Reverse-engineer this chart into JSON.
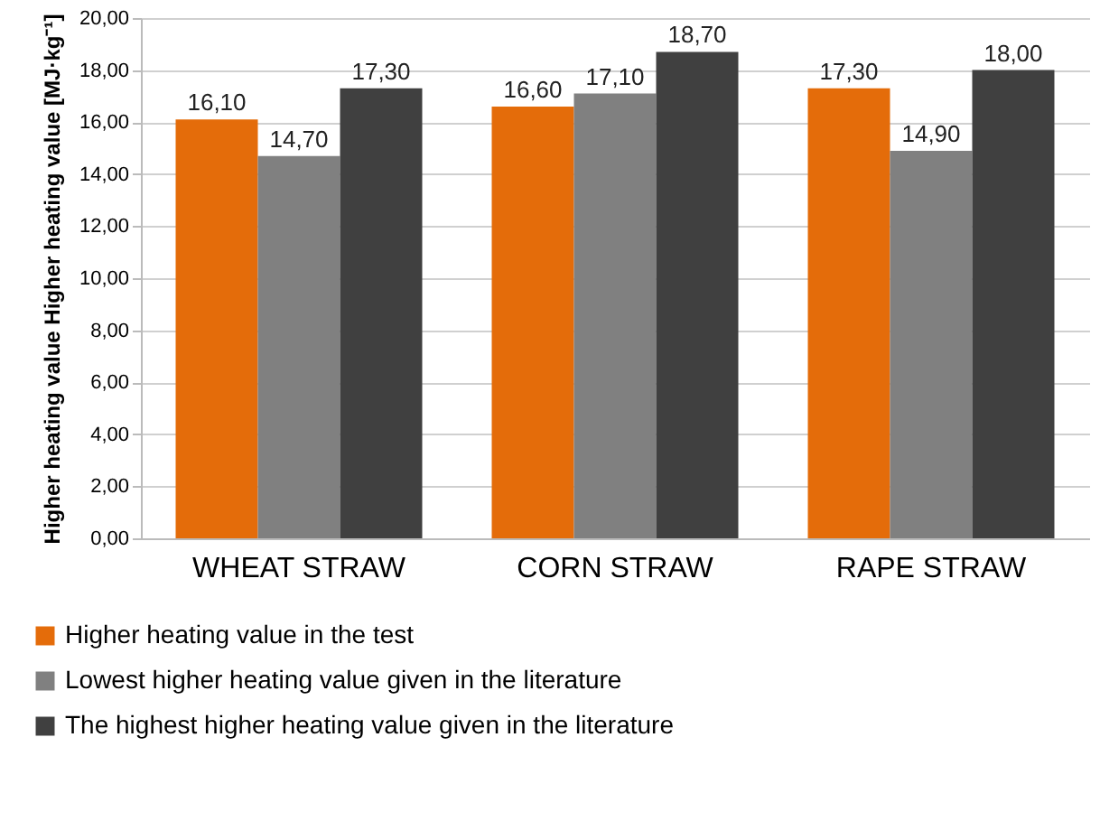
{
  "chart_data": {
    "type": "bar",
    "ylabel": "Higher heating value Higher heating value [MJ·kg⁻¹]",
    "categories": [
      "WHEAT STRAW",
      "CORN STRAW",
      "RAPE STRAW"
    ],
    "series": [
      {
        "name": "Higher heating value in the test",
        "color": "#e46c0a",
        "values": [
          16.1,
          16.6,
          17.3
        ],
        "value_labels": [
          "16,10",
          "16,60",
          "17,30"
        ]
      },
      {
        "name": "Lowest higher heating value given in the literature",
        "color": "#808080",
        "values": [
          14.7,
          17.1,
          14.9
        ],
        "value_labels": [
          "14,70",
          "17,10",
          "14,90"
        ]
      },
      {
        "name": "The highest higher heating value given in the literature",
        "color": "#404040",
        "values": [
          17.3,
          18.7,
          18.0
        ],
        "value_labels": [
          "17,30",
          "18,70",
          "18,00"
        ]
      }
    ],
    "ylim": [
      0,
      20
    ],
    "yticks": [
      {
        "value": 0,
        "label": "0,00"
      },
      {
        "value": 2,
        "label": "2,00"
      },
      {
        "value": 4,
        "label": "4,00"
      },
      {
        "value": 6,
        "label": "6,00"
      },
      {
        "value": 8,
        "label": "8,00"
      },
      {
        "value": 10,
        "label": "10,00"
      },
      {
        "value": 12,
        "label": "12,00"
      },
      {
        "value": 14,
        "label": "14,00"
      },
      {
        "value": 16,
        "label": "16,00"
      },
      {
        "value": 18,
        "label": "18,00"
      },
      {
        "value": 20,
        "label": "20,00"
      }
    ],
    "grid": "y",
    "legend": "bottom"
  }
}
